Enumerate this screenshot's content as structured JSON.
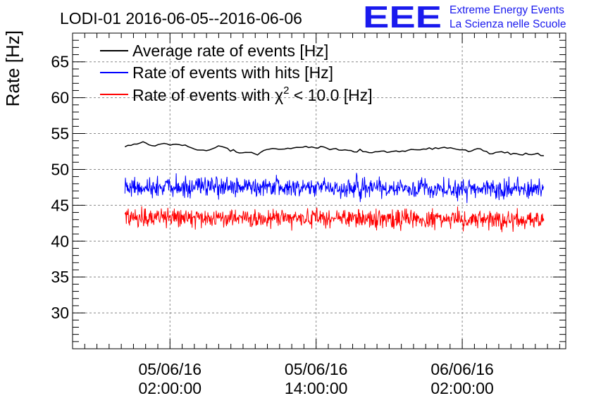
{
  "chart_data": {
    "type": "line",
    "title": "LODI-01 2016-06-05--2016-06-06",
    "ylabel": "Rate [Hz]",
    "xlabel": "",
    "ylim": [
      25,
      69
    ],
    "yticks": [
      30,
      35,
      40,
      45,
      50,
      55,
      60,
      65
    ],
    "x_axis_hours_range": [
      -6,
      34.5
    ],
    "x_ticks": [
      {
        "hour": 2,
        "date": "05/06/16",
        "time": "02:00:00"
      },
      {
        "hour": 14,
        "date": "05/06/16",
        "time": "14:00:00"
      },
      {
        "hour": 26,
        "date": "06/06/16",
        "time": "02:00:00"
      }
    ],
    "grid": true,
    "legend_position": "top-left",
    "series": [
      {
        "name": "Average rate of events [Hz]",
        "color": "#000000",
        "x_start_hour": -1.7,
        "x_end_hour": 32.7,
        "mean_start": 53.2,
        "mean_end": 52.3,
        "noise": 0.25,
        "points": 140
      },
      {
        "name": "Rate of events with hits [Hz]",
        "color": "#0000ff",
        "x_start_hour": -1.7,
        "x_end_hour": 32.7,
        "mean_start": 47.6,
        "mean_end": 47.2,
        "noise": 1.2,
        "points": 900
      },
      {
        "name": "Rate of events with χ² < 10.0 [Hz]",
        "color": "#ff0000",
        "x_start_hour": -1.7,
        "x_end_hour": 32.7,
        "mean_start": 43.3,
        "mean_end": 42.9,
        "noise": 1.1,
        "points": 900
      }
    ],
    "legend_labels": {
      "avg": "Average rate of events [Hz]",
      "hits": "Rate of events with hits [Hz]",
      "chi_prefix": "Rate of events with χ",
      "chi_sup": "2",
      "chi_suffix": " < 10.0 [Hz]"
    }
  },
  "logo": {
    "letters": "EEE",
    "line1": "Extreme Energy Events",
    "line2": "La Scienza nelle Scuole",
    "color": "#1a1aee"
  }
}
